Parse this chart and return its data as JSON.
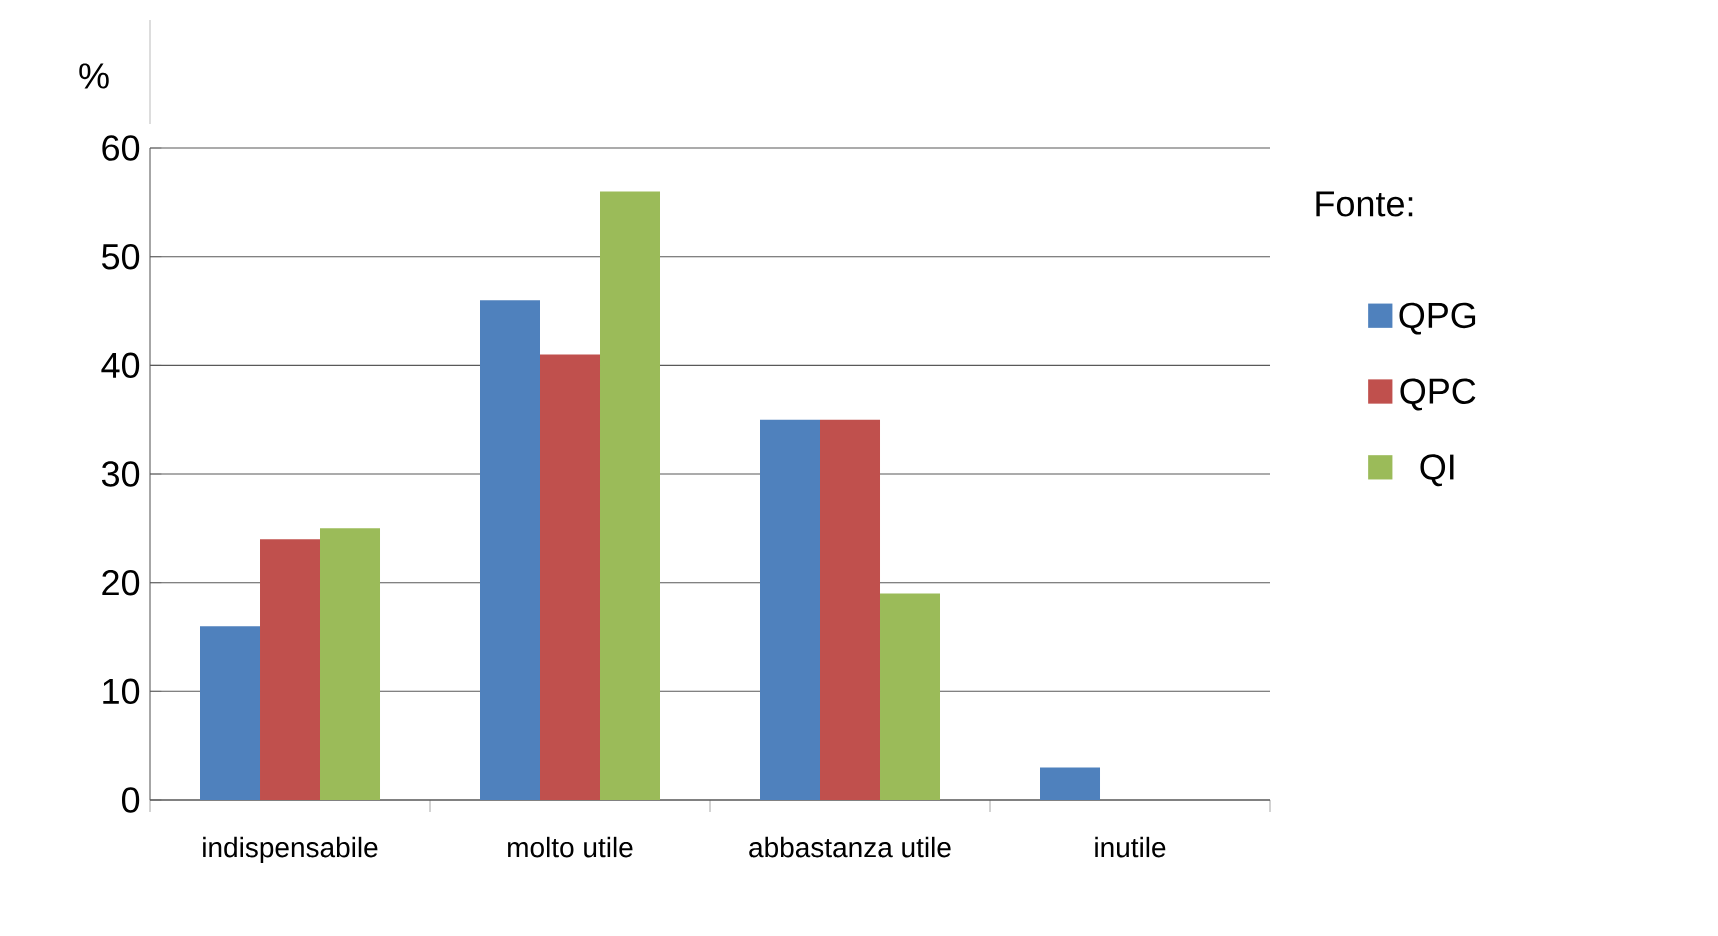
{
  "chart_data": {
    "type": "bar",
    "ylabel": "%",
    "categories": [
      "indispensabile",
      "molto utile",
      "abbastanza utile",
      "inutile"
    ],
    "series": [
      {
        "name": "QPG",
        "color": "#4f81bd",
        "values": [
          16,
          46,
          35,
          3
        ]
      },
      {
        "name": "QPC",
        "color": "#c0504d",
        "values": [
          24,
          41,
          35,
          0
        ]
      },
      {
        "name": "QI",
        "color": "#9bbb59",
        "values": [
          25,
          56,
          19,
          0
        ]
      }
    ],
    "ylim": [
      0,
      60
    ],
    "yticks": [
      0,
      10,
      20,
      30,
      40,
      50,
      60
    ],
    "grid": "y",
    "legend": "right",
    "annotations": [
      "Fonte:"
    ]
  }
}
